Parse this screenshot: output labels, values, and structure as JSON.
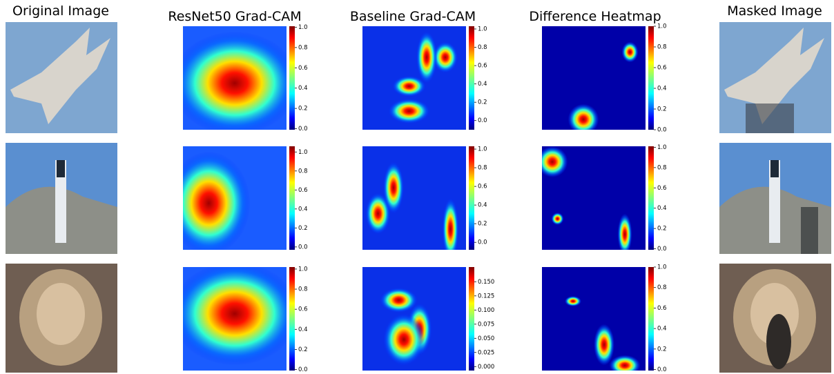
{
  "titles": [
    "Original Image",
    "ResNet50 Grad-CAM",
    "Baseline Grad-CAM",
    "Difference Heatmap",
    "Masked Image"
  ],
  "rows": [
    {
      "colorbars": [
        {
          "lim": [
            -0.01,
            1.01
          ],
          "ticks": [
            {
              "value": 0,
              "label": "0.0"
            },
            {
              "value": 0.2,
              "label": "0.2"
            },
            {
              "value": 0.4,
              "label": "0.4"
            },
            {
              "value": 0.6,
              "label": "0.6"
            },
            {
              "value": 0.8,
              "label": "0.8"
            },
            {
              "value": 1,
              "label": "1.0"
            }
          ]
        },
        {
          "lim": [
            -0.1,
            1.03
          ],
          "ticks": [
            {
              "value": 0,
              "label": "0.0"
            },
            {
              "value": 0.2,
              "label": "0.2"
            },
            {
              "value": 0.4,
              "label": "0.4"
            },
            {
              "value": 0.6,
              "label": "0.6"
            },
            {
              "value": 0.8,
              "label": "0.8"
            },
            {
              "value": 1,
              "label": "1.0"
            }
          ]
        },
        {
          "lim": [
            0,
            1
          ],
          "ticks": [
            {
              "value": 0,
              "label": "0.0"
            },
            {
              "value": 0.2,
              "label": "0.2"
            },
            {
              "value": 0.4,
              "label": "0.4"
            },
            {
              "value": 0.6,
              "label": "0.6"
            },
            {
              "value": 0.8,
              "label": "0.8"
            },
            {
              "value": 1,
              "label": "1.0"
            }
          ]
        }
      ]
    },
    {
      "colorbars": [
        {
          "lim": [
            -0.03,
            1.06
          ],
          "ticks": [
            {
              "value": 0,
              "label": "0.0"
            },
            {
              "value": 0.2,
              "label": "0.2"
            },
            {
              "value": 0.4,
              "label": "0.4"
            },
            {
              "value": 0.6,
              "label": "0.6"
            },
            {
              "value": 0.8,
              "label": "0.8"
            },
            {
              "value": 1,
              "label": "1.0"
            }
          ]
        },
        {
          "lim": [
            -0.08,
            1.03
          ],
          "ticks": [
            {
              "value": 0,
              "label": "0.0"
            },
            {
              "value": 0.2,
              "label": "0.2"
            },
            {
              "value": 0.4,
              "label": "0.4"
            },
            {
              "value": 0.6,
              "label": "0.6"
            },
            {
              "value": 0.8,
              "label": "0.8"
            },
            {
              "value": 1,
              "label": "1.0"
            }
          ]
        },
        {
          "lim": [
            -0.01,
            1.01
          ],
          "ticks": [
            {
              "value": 0,
              "label": "0.0"
            },
            {
              "value": 0.2,
              "label": "0.2"
            },
            {
              "value": 0.4,
              "label": "0.4"
            },
            {
              "value": 0.6,
              "label": "0.6"
            },
            {
              "value": 0.8,
              "label": "0.8"
            },
            {
              "value": 1,
              "label": "1.0"
            }
          ]
        }
      ]
    },
    {
      "colorbars": [
        {
          "lim": [
            -0.01,
            1.02
          ],
          "ticks": [
            {
              "value": 0,
              "label": "0.0"
            },
            {
              "value": 0.2,
              "label": "0.2"
            },
            {
              "value": 0.4,
              "label": "0.4"
            },
            {
              "value": 0.6,
              "label": "0.6"
            },
            {
              "value": 0.8,
              "label": "0.8"
            },
            {
              "value": 1,
              "label": "1.0"
            }
          ]
        },
        {
          "lim": [
            -0.007,
            0.176
          ],
          "ticks": [
            {
              "value": 0,
              "label": "0.000"
            },
            {
              "value": 0.025,
              "label": "0.025"
            },
            {
              "value": 0.05,
              "label": "0.050"
            },
            {
              "value": 0.075,
              "label": "0.075"
            },
            {
              "value": 0.1,
              "label": "0.100"
            },
            {
              "value": 0.125,
              "label": "0.125"
            },
            {
              "value": 0.15,
              "label": "0.150"
            }
          ]
        },
        {
          "lim": [
            -0.01,
            1.0
          ],
          "ticks": [
            {
              "value": 0,
              "label": "0.0"
            },
            {
              "value": 0.2,
              "label": "0.2"
            },
            {
              "value": 0.4,
              "label": "0.4"
            },
            {
              "value": 0.6,
              "label": "0.6"
            },
            {
              "value": 0.8,
              "label": "0.8"
            },
            {
              "value": 1,
              "label": "1.0"
            }
          ]
        }
      ]
    }
  ]
}
